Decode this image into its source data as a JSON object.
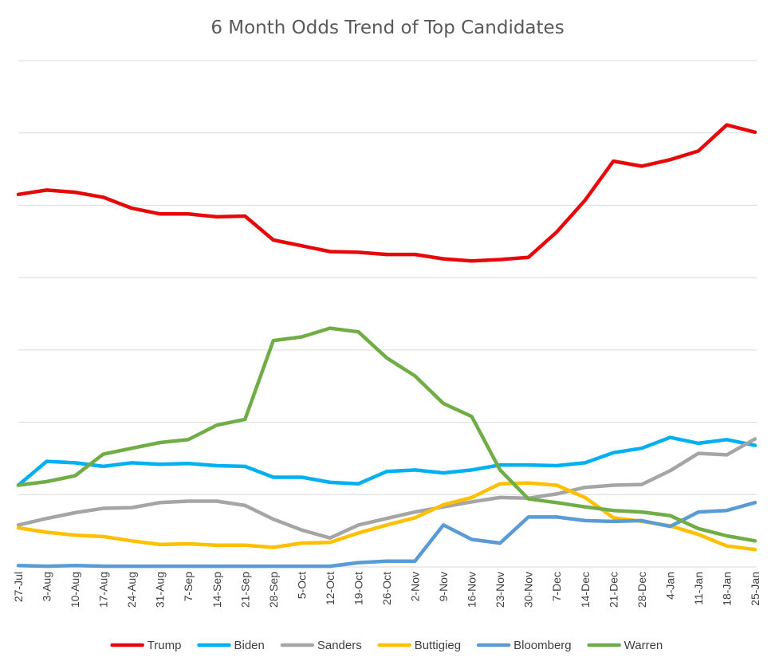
{
  "chart_data": {
    "type": "line",
    "title": "6 Month Odds Trend of Top Candidates",
    "xlabel": "",
    "ylabel": "",
    "ylim": [
      0,
      70
    ],
    "y_tick_labels_shown": false,
    "grid": true,
    "legend_position": "bottom",
    "categories": [
      "27-Jul",
      "3-Aug",
      "10-Aug",
      "17-Aug",
      "24-Aug",
      "31-Aug",
      "7-Sep",
      "14-Sep",
      "21-Sep",
      "28-Sep",
      "5-Oct",
      "12-Oct",
      "19-Oct",
      "26-Oct",
      "2-Nov",
      "9-Nov",
      "16-Nov",
      "23-Nov",
      "30-Nov",
      "7-Dec",
      "14-Dec",
      "21-Dec",
      "28-Dec",
      "4-Jan",
      "11-Jan",
      "18-Jan",
      "25-Jan"
    ],
    "series": [
      {
        "name": "Trump",
        "color": "#e5090c",
        "values": [
          51.5,
          52.1,
          51.8,
          51.1,
          49.6,
          48.8,
          48.8,
          48.4,
          48.5,
          45.2,
          44.4,
          43.6,
          43.5,
          43.2,
          43.2,
          42.6,
          42.3,
          42.5,
          42.8,
          46.3,
          50.7,
          56.1,
          55.4,
          56.3,
          57.5,
          61.1,
          60.1
        ]
      },
      {
        "name": "Biden",
        "color": "#00b0f0",
        "values": [
          11.3,
          14.6,
          14.4,
          13.9,
          14.4,
          14.2,
          14.3,
          14.0,
          13.9,
          12.4,
          12.4,
          11.7,
          11.5,
          13.2,
          13.4,
          13.0,
          13.4,
          14.1,
          14.1,
          14.0,
          14.4,
          15.8,
          16.4,
          17.9,
          17.1,
          17.6,
          16.8
        ]
      },
      {
        "name": "Sanders",
        "color": "#a5a5a5",
        "values": [
          5.8,
          6.7,
          7.5,
          8.1,
          8.2,
          8.9,
          9.1,
          9.1,
          8.5,
          6.6,
          5.1,
          4.0,
          5.8,
          6.7,
          7.6,
          8.3,
          9.0,
          9.6,
          9.5,
          10.1,
          11.0,
          11.3,
          11.4,
          13.3,
          15.7,
          15.5,
          17.7
        ]
      },
      {
        "name": "Buttigieg",
        "color": "#ffc000",
        "values": [
          5.4,
          4.8,
          4.4,
          4.2,
          3.6,
          3.1,
          3.2,
          3.0,
          3.0,
          2.7,
          3.3,
          3.4,
          4.7,
          5.8,
          6.8,
          8.6,
          9.6,
          11.5,
          11.6,
          11.3,
          9.6,
          6.8,
          6.3,
          5.7,
          4.5,
          2.9,
          2.4
        ]
      },
      {
        "name": "Bloomberg",
        "color": "#5b9bd5",
        "values": [
          0.2,
          0.1,
          0.2,
          0.1,
          0.1,
          0.1,
          0.1,
          0.1,
          0.1,
          0.1,
          0.1,
          0.1,
          0.6,
          0.8,
          0.8,
          5.8,
          3.8,
          3.3,
          6.9,
          6.9,
          6.4,
          6.3,
          6.4,
          5.6,
          7.6,
          7.8,
          8.9
        ]
      },
      {
        "name": "Warren",
        "color": "#70ad47",
        "values": [
          11.3,
          11.8,
          12.6,
          15.6,
          16.4,
          17.2,
          17.6,
          19.6,
          20.4,
          31.3,
          31.8,
          33.0,
          32.5,
          28.9,
          26.4,
          22.6,
          20.8,
          13.4,
          9.4,
          8.9,
          8.3,
          7.8,
          7.6,
          7.1,
          5.3,
          4.3,
          3.6
        ]
      }
    ]
  }
}
